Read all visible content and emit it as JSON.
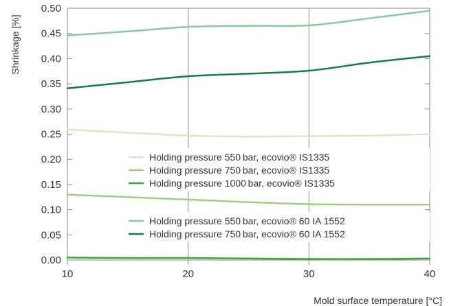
{
  "chart_data": {
    "type": "line",
    "xlabel": "Mold surface temperature [°C]",
    "ylabel": "Shrinkage [%]",
    "xlim": [
      10,
      40
    ],
    "ylim": [
      0,
      0.5
    ],
    "x_ticks": [
      "10",
      "20",
      "30",
      "40"
    ],
    "y_ticks": [
      "0.00",
      "0.05",
      "0.10",
      "0.15",
      "0.20",
      "0.25",
      "0.30",
      "0.35",
      "0.40",
      "0.45",
      "0.50"
    ],
    "grid": "vertical",
    "legend_position": "center",
    "x": [
      10,
      15,
      20,
      25,
      30,
      35,
      40
    ],
    "series": [
      {
        "name": "Holding pressure 550 bar, ecovio® IS1335",
        "color": "#d6e8c6",
        "values": [
          0.259,
          0.253,
          0.247,
          0.245,
          0.246,
          0.247,
          0.25
        ]
      },
      {
        "name": "Holding pressure 750 bar, ecovio® IS1335",
        "color": "#9ecf80",
        "values": [
          0.13,
          0.125,
          0.12,
          0.115,
          0.111,
          0.11,
          0.11
        ]
      },
      {
        "name": "Holding pressure 1000 bar, ecovio® IS1335",
        "color": "#3fa535",
        "values": [
          0.005,
          0.004,
          0.004,
          0.003,
          0.002,
          0.002,
          0.003
        ]
      },
      {
        "name": "Holding pressure 550 bar, ecovio® 60 IA 1552",
        "color": "#8cc5a3",
        "values": [
          0.446,
          0.454,
          0.463,
          0.465,
          0.466,
          0.48,
          0.495
        ]
      },
      {
        "name": "Holding pressure 750 bar, ecovio® 60 IA 1552",
        "color": "#0f8040",
        "values": [
          0.341,
          0.353,
          0.365,
          0.37,
          0.376,
          0.392,
          0.405
        ]
      }
    ],
    "legend_groups": [
      [
        0,
        1,
        2
      ],
      [
        3,
        4
      ]
    ]
  }
}
